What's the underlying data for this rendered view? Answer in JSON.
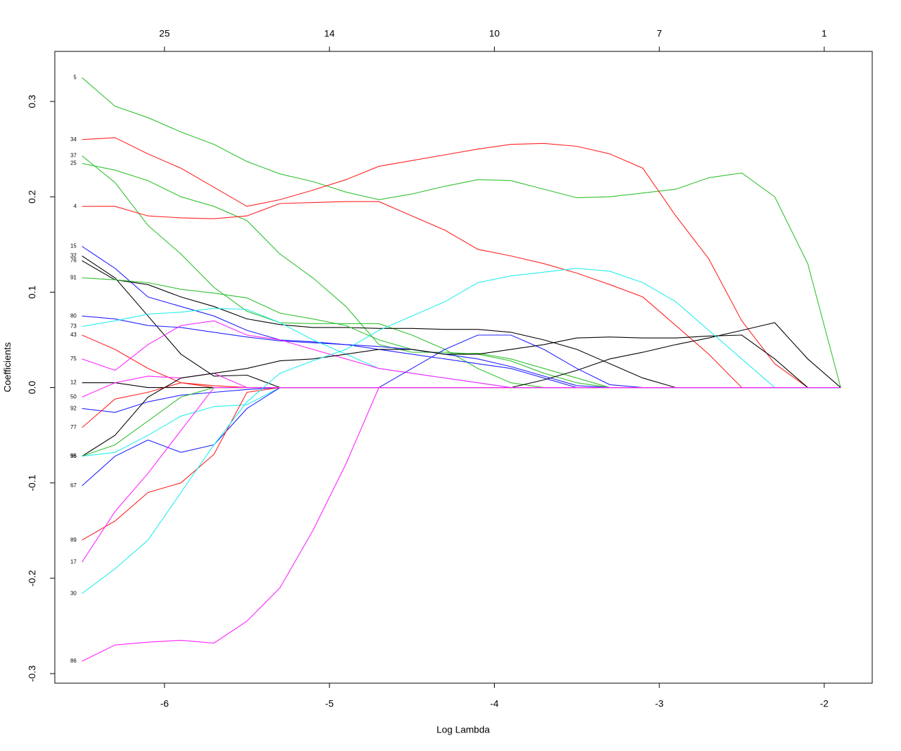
{
  "chart_data": {
    "type": "line",
    "x_label": "Log Lambda",
    "y_label": "Coefficients",
    "xlim": [
      -6.665,
      -1.709
    ],
    "ylim": [
      -0.31,
      0.3525
    ],
    "xticks": [
      -6,
      -5,
      -4,
      -3,
      -2
    ],
    "x2ticks": [
      {
        "value": -6,
        "label": "25"
      },
      {
        "value": -5,
        "label": "14"
      },
      {
        "value": -4,
        "label": "10"
      },
      {
        "value": -3,
        "label": "7"
      },
      {
        "value": -2,
        "label": "1"
      }
    ],
    "yticks": [
      -0.3,
      -0.2,
      -0.1,
      {
        "value": 0,
        "label": "0.0"
      },
      0.1,
      0.2,
      0.3
    ],
    "x": [
      -6.5,
      -6.3,
      -6.1,
      -5.9,
      -5.7,
      -5.5,
      -5.3,
      -5.1,
      -4.9,
      -4.7,
      -4.5,
      -4.3,
      -4.1,
      -3.9,
      -3.7,
      -3.5,
      -3.3,
      -3.1,
      -2.9,
      -2.7,
      -2.5,
      -2.3,
      -2.1,
      -1.9
    ],
    "series": [
      {
        "name": "5",
        "color": "#2fc02f",
        "values": [
          0.325,
          0.295,
          0.283,
          0.268,
          0.255,
          0.237,
          0.224,
          0.216,
          0.205,
          0.197,
          0.203,
          0.211,
          0.218,
          0.217,
          0.208,
          0.199,
          0.2,
          0.204,
          0.208,
          0.22,
          0.225,
          0.2,
          0.13,
          0
        ]
      },
      {
        "name": "34",
        "color": "#ff2020",
        "values": [
          0.26,
          0.262,
          0.245,
          0.23,
          0.21,
          0.19,
          0.197,
          0.207,
          0.218,
          0.232,
          0.238,
          0.244,
          0.25,
          0.255,
          0.256,
          0.253,
          0.245,
          0.23,
          0.18,
          0.135,
          0.07,
          0.025,
          0,
          0
        ]
      },
      {
        "name": "37",
        "color": "#2fc02f",
        "values": [
          0.243,
          0.215,
          0.17,
          0.14,
          0.105,
          0.08,
          0.068,
          0.067,
          0.067,
          0.067,
          0.055,
          0.04,
          0.02,
          0.005,
          0,
          0,
          0,
          0,
          0,
          0,
          0,
          0,
          0,
          0
        ]
      },
      {
        "name": "25",
        "color": "#2fc02f",
        "values": [
          0.235,
          0.228,
          0.217,
          0.2,
          0.19,
          0.175,
          0.14,
          0.115,
          0.085,
          0.045,
          0.037,
          0.037,
          0.035,
          0.028,
          0.015,
          0.005,
          0,
          0,
          0,
          0,
          0,
          0,
          0,
          0
        ]
      },
      {
        "name": "4",
        "color": "#ff2020",
        "values": [
          0.19,
          0.19,
          0.18,
          0.178,
          0.177,
          0.18,
          0.193,
          0.194,
          0.195,
          0.195,
          0.18,
          0.165,
          0.145,
          0.138,
          0.13,
          0.12,
          0.108,
          0.095,
          0.065,
          0.035,
          0,
          0,
          0,
          0
        ]
      },
      {
        "name": "15",
        "color": "#2020ff",
        "values": [
          0.148,
          0.125,
          0.095,
          0.085,
          0.075,
          0.06,
          0.05,
          0.048,
          0.045,
          0.04,
          0.035,
          0.03,
          0.025,
          0.02,
          0.01,
          0,
          0,
          0,
          0,
          0,
          0,
          0,
          0,
          0
        ]
      },
      {
        "name": "32",
        "color": "#000000",
        "values": [
          0.138,
          0.115,
          0.075,
          0.035,
          0.012,
          0.013,
          0,
          0,
          0,
          0,
          0,
          0,
          0,
          0,
          0,
          0,
          0,
          0,
          0,
          0,
          0,
          0,
          0,
          0
        ]
      },
      {
        "name": "76",
        "color": "#000000",
        "values": [
          0.133,
          0.113,
          0.108,
          0.095,
          0.085,
          0.072,
          0.066,
          0.063,
          0.063,
          0.062,
          0.062,
          0.061,
          0.061,
          0.058,
          0.05,
          0.04,
          0.025,
          0.01,
          0,
          0,
          0,
          0,
          0,
          0
        ]
      },
      {
        "name": "91",
        "color": "#2fc02f",
        "values": [
          0.115,
          0.113,
          0.11,
          0.103,
          0.099,
          0.094,
          0.078,
          0.072,
          0.065,
          0.05,
          0.04,
          0.035,
          0.036,
          0.03,
          0.02,
          0.01,
          0,
          0,
          0,
          0,
          0,
          0,
          0,
          0
        ]
      },
      {
        "name": "80",
        "color": "#2020ff",
        "values": [
          0.075,
          0.072,
          0.065,
          0.063,
          0.058,
          0.053,
          0.049,
          0.047,
          0.045,
          0.043,
          0.04,
          0.035,
          0.03,
          0.022,
          0.012,
          0.002,
          0,
          0,
          0,
          0,
          0,
          0,
          0,
          0
        ]
      },
      {
        "name": "73",
        "color": "#22eeee",
        "values": [
          0.064,
          0.07,
          0.077,
          0.079,
          0.083,
          0.082,
          0.068,
          0.05,
          0.035,
          0.02,
          0.015,
          0.01,
          0.005,
          0,
          0,
          0,
          0,
          0,
          0,
          0,
          0,
          0,
          0,
          0
        ]
      },
      {
        "name": "43",
        "color": "#ff2020",
        "values": [
          0.055,
          0.04,
          0.02,
          0.005,
          0,
          0,
          0,
          0,
          0,
          0,
          0,
          0,
          0,
          0,
          0,
          0,
          0,
          0,
          0,
          0,
          0,
          0,
          0,
          0
        ]
      },
      {
        "name": "75",
        "color": "#ff20ff",
        "values": [
          0.03,
          0.018,
          0.045,
          0.065,
          0.07,
          0.055,
          0.05,
          0.04,
          0.03,
          0.02,
          0.015,
          0.01,
          0.005,
          0,
          0,
          0,
          0,
          0,
          0,
          0,
          0,
          0,
          0,
          0
        ]
      },
      {
        "name": "12",
        "color": "#000000",
        "values": [
          0.005,
          0.005,
          0,
          0,
          0,
          0,
          0,
          0,
          0,
          0,
          0,
          0,
          0,
          0,
          0.008,
          0.018,
          0.03,
          0.037,
          0.045,
          0.052,
          0.06,
          0.068,
          0.03,
          0
        ]
      },
      {
        "name": "50",
        "color": "#ff20ff",
        "values": [
          -0.01,
          0.005,
          0.012,
          0.01,
          0.015,
          0,
          0,
          0,
          0,
          0,
          0,
          0,
          0,
          0,
          0,
          0,
          0,
          0,
          0,
          0,
          0,
          0,
          0,
          0
        ]
      },
      {
        "name": "92",
        "color": "#2020ff",
        "values": [
          -0.022,
          -0.026,
          -0.015,
          -0.008,
          -0.005,
          -0.002,
          0,
          0,
          0,
          0,
          0.02,
          0.04,
          0.055,
          0.055,
          0.04,
          0.02,
          0.003,
          0,
          0,
          0,
          0,
          0,
          0,
          0
        ]
      },
      {
        "name": "77",
        "color": "#ff2020",
        "values": [
          -0.042,
          -0.012,
          -0.005,
          0.005,
          0.002,
          0,
          0,
          0,
          0,
          0,
          0,
          0,
          0,
          0,
          0,
          0,
          0,
          0,
          0,
          0,
          0,
          0,
          0,
          0
        ]
      },
      {
        "name": "55",
        "color": "#000000",
        "values": [
          -0.072,
          -0.05,
          -0.01,
          0.01,
          0.015,
          0.02,
          0.028,
          0.03,
          0.035,
          0.04,
          0.04,
          0.035,
          0.035,
          0.04,
          0.045,
          0.052,
          0.053,
          0.052,
          0.052,
          0.054,
          0.055,
          0.03,
          0,
          0
        ]
      },
      {
        "name": "96",
        "color": "#2fc02f",
        "values": [
          -0.072,
          -0.06,
          -0.035,
          -0.01,
          0,
          0,
          0,
          0,
          0,
          0,
          0,
          0,
          0,
          0,
          0,
          0,
          0,
          0,
          0,
          0,
          0,
          0,
          0,
          0
        ]
      },
      {
        "name": "95",
        "color": "#22eeee",
        "values": [
          -0.072,
          -0.068,
          -0.05,
          -0.03,
          -0.02,
          -0.018,
          0,
          0,
          0,
          0,
          0,
          0,
          0,
          0,
          0,
          0,
          0,
          0,
          0,
          0,
          0,
          0,
          0,
          0
        ]
      },
      {
        "name": "67",
        "color": "#2020ff",
        "values": [
          -0.103,
          -0.072,
          -0.055,
          -0.068,
          -0.06,
          -0.022,
          0,
          0,
          0,
          0,
          0,
          0,
          0,
          0,
          0,
          0,
          0,
          0,
          0,
          0,
          0,
          0,
          0,
          0
        ]
      },
      {
        "name": "89",
        "color": "#ff2020",
        "values": [
          -0.16,
          -0.14,
          -0.11,
          -0.1,
          -0.07,
          -0.005,
          0,
          0,
          0,
          0,
          0,
          0,
          0,
          0,
          0,
          0,
          0,
          0,
          0,
          0,
          0,
          0,
          0,
          0
        ]
      },
      {
        "name": "17",
        "color": "#ff20ff",
        "values": [
          -0.183,
          -0.13,
          -0.09,
          -0.045,
          0,
          0,
          0,
          0,
          0,
          0,
          0,
          0,
          0,
          0,
          0,
          0,
          0,
          0,
          0,
          0,
          0,
          0,
          0,
          0
        ]
      },
      {
        "name": "30",
        "color": "#22eeee",
        "values": [
          -0.216,
          -0.19,
          -0.16,
          -0.11,
          -0.06,
          -0.015,
          0.015,
          0.028,
          0.04,
          0.06,
          0.075,
          0.09,
          0.11,
          0.117,
          0.121,
          0.125,
          0.122,
          0.11,
          0.09,
          0.06,
          0.03,
          0,
          0,
          0
        ]
      },
      {
        "name": "86",
        "color": "#ff20ff",
        "values": [
          -0.287,
          -0.27,
          -0.267,
          -0.265,
          -0.268,
          -0.245,
          -0.21,
          -0.15,
          -0.08,
          0,
          0,
          0,
          0,
          0,
          0,
          0,
          0,
          0,
          0,
          0,
          0,
          0,
          0,
          0
        ]
      }
    ]
  }
}
